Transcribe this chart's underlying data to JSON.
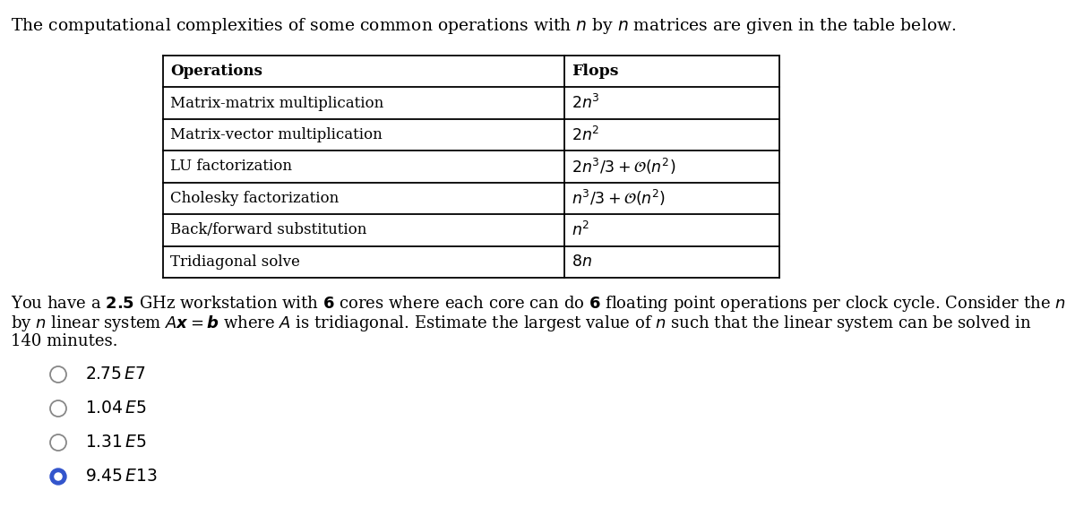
{
  "bg_color": "#ffffff",
  "text_color": "#000000",
  "title": "The computational complexities of some common operations with $n$ by $n$ matrices are given in the table below.",
  "table_col1_labels": [
    "Operations",
    "Matrix-matrix multiplication",
    "Matrix-vector multiplication",
    "LU factorization",
    "Cholesky factorization",
    "Back/forward substitution",
    "Tridiagonal solve"
  ],
  "table_col2_labels": [
    "Flops",
    "$2n^3$",
    "$2n^2$",
    "$2n^3/3 + \\mathcal{O}(n^2)$",
    "$n^3/3 + \\mathcal{O}(n^2)$",
    "$n^2$",
    "$8n$"
  ],
  "choices_text": [
    "$2.75\\,E7$",
    "$1.04\\,E5$",
    "$1.31\\,E5$",
    "$9.45\\,E13$"
  ],
  "correct_index": 3,
  "circle_color_selected": "#3355cc",
  "circle_color_unselected": "#888888"
}
